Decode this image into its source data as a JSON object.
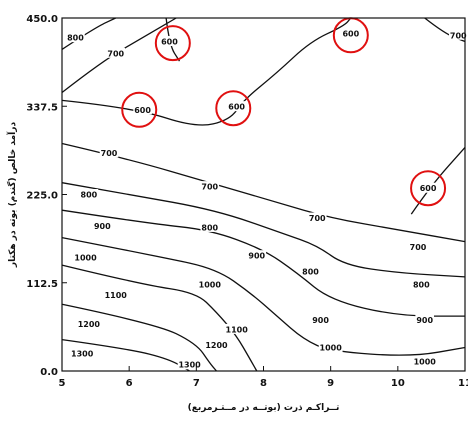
{
  "chart_data": {
    "type": "contour",
    "xlabel": "تــراکـم ذرت (بوتــه در مــتـرمربع)",
    "ylabel": "درآمد خالص (گندم) بوته در هکتار",
    "xlim": [
      5,
      11
    ],
    "ylim": [
      0,
      450
    ],
    "x_ticks": [
      "5",
      "6",
      "7",
      "8",
      "9",
      "10",
      "11"
    ],
    "y_ticks": [
      "0.0",
      "112.5",
      "225.0",
      "337.5",
      "450.0"
    ],
    "grid": false,
    "levels": [
      {
        "label": "800",
        "points": [
          [
            5.0,
            410.0
          ],
          [
            5.5,
            438.0
          ],
          [
            5.8,
            450.0
          ]
        ]
      },
      {
        "label": "700",
        "points": [
          [
            5.0,
            355.0
          ],
          [
            5.6,
            395.0
          ],
          [
            6.2,
            425.0
          ],
          [
            6.7,
            450.0
          ]
        ]
      },
      {
        "label": "600",
        "points": [
          [
            6.55,
            450.0
          ],
          [
            6.6,
            415.0
          ],
          [
            6.75,
            395.0
          ]
        ]
      },
      {
        "label": "600",
        "points": [
          [
            5.0,
            345.0
          ],
          [
            6.1,
            335.0
          ],
          [
            7.0,
            310.0
          ],
          [
            7.5,
            320.0
          ],
          [
            7.7,
            345.0
          ],
          [
            8.2,
            380.0
          ],
          [
            8.7,
            420.0
          ],
          [
            9.2,
            440.0
          ],
          [
            9.3,
            450.0
          ]
        ]
      },
      {
        "label": "700",
        "points": [
          [
            10.4,
            450.0
          ],
          [
            10.7,
            430.0
          ],
          [
            11.0,
            420.0
          ]
        ]
      },
      {
        "label": "600",
        "points": [
          [
            10.2,
            200.0
          ],
          [
            10.5,
            237.0
          ],
          [
            11.0,
            285.0
          ]
        ]
      },
      {
        "label": "700",
        "points": [
          [
            5.0,
            290.0
          ],
          [
            6.0,
            270.0
          ],
          [
            7.2,
            240.0
          ],
          [
            8.2,
            215.0
          ],
          [
            9.0,
            195.0
          ],
          [
            10.0,
            180.0
          ],
          [
            11.0,
            165.0
          ]
        ]
      },
      {
        "label": "800",
        "points": [
          [
            5.0,
            240.0
          ],
          [
            6.0,
            225.0
          ],
          [
            7.3,
            205.0
          ],
          [
            8.3,
            175.0
          ],
          [
            8.8,
            160.0
          ],
          [
            9.2,
            135.0
          ],
          [
            10.0,
            125.0
          ],
          [
            11.0,
            120.0
          ]
        ]
      },
      {
        "label": "900",
        "points": [
          [
            5.0,
            205.0
          ],
          [
            6.3,
            188.0
          ],
          [
            7.2,
            180.0
          ],
          [
            8.0,
            155.0
          ],
          [
            8.5,
            125.0
          ],
          [
            9.0,
            90.0
          ],
          [
            10.0,
            70.0
          ],
          [
            11.0,
            70.0
          ]
        ]
      },
      {
        "label": "1000",
        "points": [
          [
            5.0,
            170.0
          ],
          [
            6.5,
            145.0
          ],
          [
            7.3,
            130.0
          ],
          [
            7.8,
            100.0
          ],
          [
            8.2,
            70.0
          ],
          [
            8.6,
            40.0
          ],
          [
            9.0,
            25.0
          ],
          [
            10.2,
            18.0
          ],
          [
            11.0,
            30.0
          ]
        ]
      },
      {
        "label": "1100",
        "points": [
          [
            5.0,
            135.0
          ],
          [
            6.2,
            110.0
          ],
          [
            7.0,
            100.0
          ],
          [
            7.3,
            75.0
          ],
          [
            7.6,
            45.0
          ],
          [
            7.8,
            15.0
          ],
          [
            7.9,
            0.0
          ]
        ]
      },
      {
        "label": "1200",
        "points": [
          [
            5.0,
            85.0
          ],
          [
            6.4,
            60.0
          ],
          [
            7.0,
            35.0
          ],
          [
            7.2,
            10.0
          ],
          [
            7.3,
            0.0
          ]
        ]
      },
      {
        "label": "1300",
        "points": [
          [
            5.0,
            40.0
          ],
          [
            6.0,
            28.0
          ],
          [
            6.6,
            15.0
          ],
          [
            6.9,
            0.0
          ]
        ]
      }
    ],
    "contour_labels": [
      {
        "text": "800",
        "x": 5.2,
        "y": 425.0
      },
      {
        "text": "700",
        "x": 5.8,
        "y": 405.0
      },
      {
        "text": "600",
        "x": 6.6,
        "y": 420.0
      },
      {
        "text": "600",
        "x": 9.3,
        "y": 430.0
      },
      {
        "text": "700",
        "x": 10.9,
        "y": 428.0
      },
      {
        "text": "600",
        "x": 6.2,
        "y": 333.0
      },
      {
        "text": "600",
        "x": 7.6,
        "y": 337.0
      },
      {
        "text": "700",
        "x": 5.7,
        "y": 278.0
      },
      {
        "text": "700",
        "x": 7.2,
        "y": 235.0
      },
      {
        "text": "700",
        "x": 8.8,
        "y": 195.0
      },
      {
        "text": "700",
        "x": 10.3,
        "y": 158.0
      },
      {
        "text": "600",
        "x": 10.45,
        "y": 233.0
      },
      {
        "text": "800",
        "x": 5.4,
        "y": 225.0
      },
      {
        "text": "800",
        "x": 7.2,
        "y": 183.0
      },
      {
        "text": "800",
        "x": 8.7,
        "y": 127.0
      },
      {
        "text": "800",
        "x": 10.35,
        "y": 110.0
      },
      {
        "text": "900",
        "x": 5.6,
        "y": 185.0
      },
      {
        "text": "900",
        "x": 7.9,
        "y": 147.0
      },
      {
        "text": "900",
        "x": 8.85,
        "y": 65.0
      },
      {
        "text": "900",
        "x": 10.4,
        "y": 65.0
      },
      {
        "text": "1000",
        "x": 5.35,
        "y": 145.0
      },
      {
        "text": "1000",
        "x": 7.2,
        "y": 110.0
      },
      {
        "text": "1000",
        "x": 9.0,
        "y": 30.0
      },
      {
        "text": "1000",
        "x": 10.4,
        "y": 12.0
      },
      {
        "text": "1100",
        "x": 5.8,
        "y": 97.0
      },
      {
        "text": "1100",
        "x": 7.6,
        "y": 53.0
      },
      {
        "text": "1200",
        "x": 5.4,
        "y": 60.0
      },
      {
        "text": "1200",
        "x": 7.3,
        "y": 33.0
      },
      {
        "text": "1300",
        "x": 5.3,
        "y": 22.0
      },
      {
        "text": "1300",
        "x": 6.9,
        "y": 8.0
      }
    ],
    "highlight_circles": [
      {
        "x": 6.65,
        "y": 418.0
      },
      {
        "x": 9.3,
        "y": 428.0
      },
      {
        "x": 6.15,
        "y": 333.0
      },
      {
        "x": 7.55,
        "y": 335.0
      },
      {
        "x": 10.45,
        "y": 233.0
      }
    ],
    "colors": {
      "lines": "#111111",
      "highlight": "#e01010"
    }
  }
}
